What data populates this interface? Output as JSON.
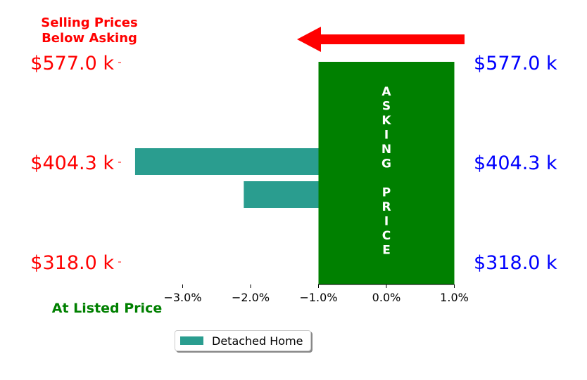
{
  "chart_data": {
    "type": "bar",
    "orientation": "horizontal",
    "series": [
      {
        "name": "Detached Home",
        "color": "#2a9d8f",
        "values": [
          -3.7,
          -2.1
        ]
      }
    ],
    "xlim": [
      -4.0,
      1.0
    ],
    "xticks": [
      "−3.0%",
      "−2.0%",
      "−1.0%",
      "0.0%",
      "1.0%"
    ],
    "xtick_values": [
      -3.0,
      -2.0,
      -1.0,
      0.0,
      1.0
    ],
    "y_axis_left": {
      "tick_labels": [
        "$577.0 k",
        "$404.3 k",
        "$318.0 k"
      ],
      "color": "#ff0000"
    },
    "y_axis_right": {
      "tick_labels": [
        "$577.0 k",
        "$404.3 k",
        "$318.0 k"
      ],
      "color": "#0000ff"
    },
    "asking_price_band": {
      "x_range": [
        -1.0,
        1.0
      ],
      "color": "#008000",
      "label_line1": "ASKING",
      "label_line2": "PRICE"
    },
    "annotations": {
      "below_asking_line1": "Selling Prices",
      "below_asking_line2": "Below Asking",
      "below_asking_color": "#ff0000",
      "at_listed": "At Listed Price",
      "at_listed_color": "#008000",
      "arrow_color": "#ff0000",
      "arrow_direction": "left"
    },
    "legend": {
      "position": "bottom-center",
      "entries": [
        "Detached Home"
      ]
    }
  }
}
